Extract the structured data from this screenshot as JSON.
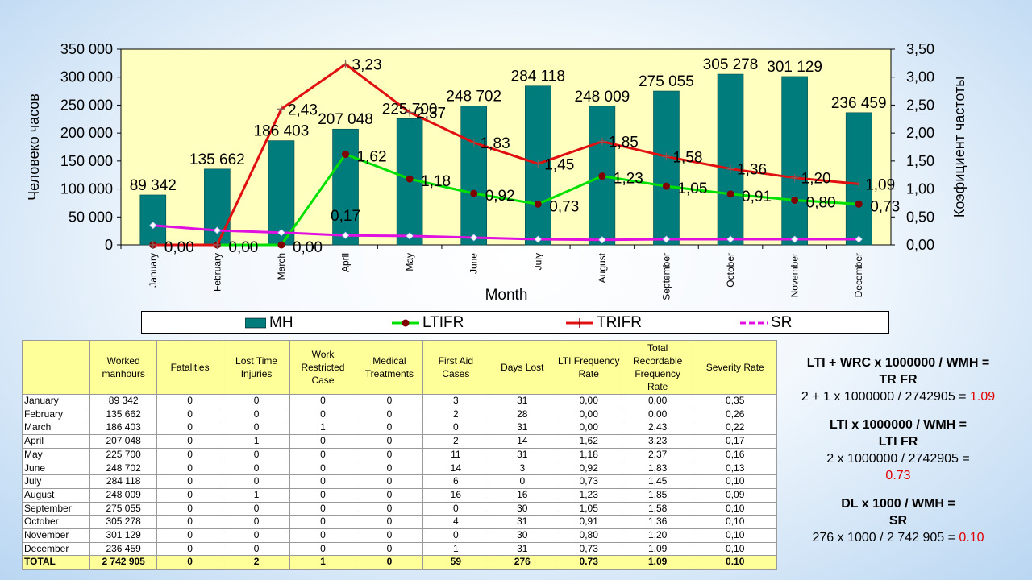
{
  "chart_data": {
    "type": "bar+line",
    "categories": [
      "January",
      "February",
      "March",
      "April",
      "May",
      "June",
      "July",
      "August",
      "September",
      "October",
      "November",
      "December"
    ],
    "xlabel": "Month",
    "ylabel_left": "Человеко часов",
    "ylabel_right": "Коэфициент частоты",
    "ylim_left": [
      0,
      350000
    ],
    "ylim_right": [
      0,
      3.5
    ],
    "yticks_left": [
      "0",
      "50 000",
      "100 000",
      "150 000",
      "200 000",
      "250 000",
      "300 000",
      "350 000"
    ],
    "yticks_right": [
      "0,00",
      "0,50",
      "1,00",
      "1,50",
      "2,00",
      "2,50",
      "3,00",
      "3,50"
    ],
    "series": [
      {
        "name": "MH",
        "kind": "bar",
        "axis": "left",
        "color": "#007c7c",
        "values": [
          89342,
          135662,
          186403,
          207048,
          225700,
          248702,
          284118,
          248009,
          275055,
          305278,
          301129,
          236459
        ],
        "labels": [
          "89 342",
          "135 662",
          "186 403",
          "207 048",
          "225 700",
          "248 702",
          "284 118",
          "248 009",
          "275 055",
          "305 278",
          "301 129",
          "236 459"
        ]
      },
      {
        "name": "LTIFR",
        "kind": "line",
        "axis": "right",
        "color": "#00e000",
        "marker": "circle",
        "marker_color": "#800000",
        "values": [
          0,
          0,
          0,
          1.62,
          1.18,
          0.92,
          0.73,
          1.23,
          1.05,
          0.91,
          0.8,
          0.73
        ],
        "labels": [
          "0,00",
          "0,00",
          "0,00",
          "1,62",
          "1,18",
          "0,92",
          "0,73",
          "1,23",
          "1,05",
          "0,91",
          "0,80",
          "0,73"
        ]
      },
      {
        "name": "TRIFR",
        "kind": "line",
        "axis": "right",
        "color": "#e01010",
        "marker": "plus",
        "values": [
          0,
          0,
          2.43,
          3.23,
          2.37,
          1.83,
          1.45,
          1.85,
          1.58,
          1.36,
          1.2,
          1.09
        ],
        "labels": [
          "",
          "",
          "2,43",
          "3,23",
          "2,37",
          "1,83",
          "1,45",
          "1,85",
          "1,58",
          "1,36",
          "1,20",
          "1,09"
        ]
      },
      {
        "name": "SR",
        "kind": "line",
        "axis": "right",
        "color": "#e010e0",
        "marker": "diamond",
        "values": [
          0.35,
          0.26,
          0.22,
          0.17,
          0.16,
          0.13,
          0.1,
          0.09,
          0.1,
          0.1,
          0.1,
          0.1
        ],
        "labels": [
          "",
          "",
          "",
          "0,17",
          "",
          "",
          "",
          "",
          "",
          "",
          "",
          ""
        ]
      }
    ],
    "legend_position": "bottom"
  },
  "table": {
    "headers": [
      "",
      "Worked manhours",
      "Fatalities",
      "Lost Time Injuries",
      "Work Restricted Case",
      "Medical Treatments",
      "First Aid Cases",
      "Days Lost",
      "LTI Frequency Rate",
      "Total Recordable Frequency Rate",
      "Severity Rate"
    ],
    "rows": [
      [
        "January",
        "89 342",
        "0",
        "0",
        "0",
        "0",
        "3",
        "31",
        "0,00",
        "0,00",
        "0,35"
      ],
      [
        "February",
        "135 662",
        "0",
        "0",
        "0",
        "0",
        "2",
        "28",
        "0,00",
        "0,00",
        "0,26"
      ],
      [
        "March",
        "186 403",
        "0",
        "0",
        "1",
        "0",
        "0",
        "31",
        "0,00",
        "2,43",
        "0,22"
      ],
      [
        "April",
        "207 048",
        "0",
        "1",
        "0",
        "0",
        "2",
        "14",
        "1,62",
        "3,23",
        "0,17"
      ],
      [
        "May",
        "225 700",
        "0",
        "0",
        "0",
        "0",
        "11",
        "31",
        "1,18",
        "2,37",
        "0,16"
      ],
      [
        "June",
        "248 702",
        "0",
        "0",
        "0",
        "0",
        "14",
        "3",
        "0,92",
        "1,83",
        "0,13"
      ],
      [
        "July",
        "284 118",
        "0",
        "0",
        "0",
        "0",
        "6",
        "0",
        "0,73",
        "1,45",
        "0,10"
      ],
      [
        "August",
        "248 009",
        "0",
        "1",
        "0",
        "0",
        "16",
        "16",
        "1,23",
        "1,85",
        "0,09"
      ],
      [
        "September",
        "275 055",
        "0",
        "0",
        "0",
        "0",
        "0",
        "30",
        "1,05",
        "1,58",
        "0,10"
      ],
      [
        "October",
        "305 278",
        "0",
        "0",
        "0",
        "0",
        "4",
        "31",
        "0,91",
        "1,36",
        "0,10"
      ],
      [
        "November",
        "301 129",
        "0",
        "0",
        "0",
        "0",
        "0",
        "30",
        "0,80",
        "1,20",
        "0,10"
      ],
      [
        "December",
        "236 459",
        "0",
        "0",
        "0",
        "0",
        "1",
        "31",
        "0,73",
        "1,09",
        "0,10"
      ]
    ],
    "total": [
      "TOTAL",
      "2 742 905",
      "0",
      "2",
      "1",
      "0",
      "59",
      "276",
      "0.73",
      "1.09",
      "0.10"
    ]
  },
  "formulas": {
    "trfr": {
      "line1": "LTI + WRC x 1000000 / WMH =",
      "line2": "TR FR",
      "calc": "2 + 1 x 1000000 / 2742905 = ",
      "result": "1.09"
    },
    "ltifr": {
      "line1": "LTI x 1000000 / WMH =",
      "line2": "LTI FR",
      "calc": "2 x 1000000 / 2742905 =",
      "result": "0.73"
    },
    "sr": {
      "line1": "DL x 1000 / WMH =",
      "line2": "SR",
      "calc": "276 x 1000 / 2 742 905  = ",
      "result": "0.10"
    }
  }
}
